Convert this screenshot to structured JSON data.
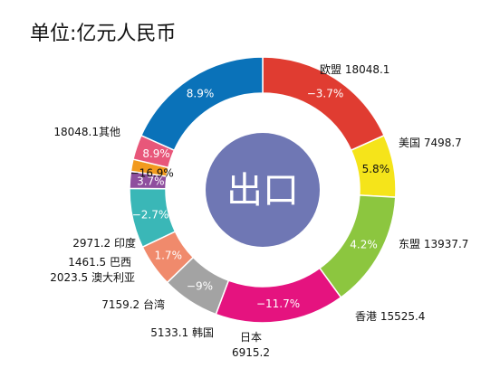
{
  "chart_data": {
    "type": "pie",
    "title": "单位:亿元人民币",
    "center_label": "出口",
    "slices": [
      {
        "name": "欧盟",
        "value": 18048.1,
        "label": "欧盟 18048.1",
        "growth": "−3.7%",
        "color": "#e03c31"
      },
      {
        "name": "美国",
        "value": 7498.7,
        "label": "美国 7498.7",
        "growth": "5.8%",
        "color": "#f5e41a"
      },
      {
        "name": "东盟",
        "value": 13937.7,
        "label": "东盟 13937.7",
        "growth": "4.2%",
        "color": "#8cc63f"
      },
      {
        "name": "香港",
        "value": 15525.4,
        "label": "香港 15525.4",
        "growth": "−11.7%",
        "color": "#e5137f"
      },
      {
        "name": "日本",
        "value": 6915.2,
        "label": "日本",
        "label2": "6915.2",
        "growth": "−9%",
        "color": "#a3a3a3"
      },
      {
        "name": "韩国",
        "value": 5133.1,
        "label": "5133.1 韩国",
        "growth": "1.7%",
        "color": "#f08a6c"
      },
      {
        "name": "台湾",
        "value": 7159.2,
        "label": "7159.2 台湾",
        "growth": "−2.7%",
        "color": "#3ab7b7"
      },
      {
        "name": "澳大利亚",
        "value": 2023.5,
        "label": "2023.5 澳大利亚",
        "growth": "3.7%",
        "color": "#8e4f9e"
      },
      {
        "name": "巴西",
        "value": 1461.5,
        "label": "1461.5 巴西",
        "growth": "−16.9%",
        "color": "#f29b1f"
      },
      {
        "name": "印度",
        "value": 2971.2,
        "label": "2971.2 印度",
        "growth": "8.9%",
        "color": "#e8577a"
      },
      {
        "name": "其他",
        "value": 18048.1,
        "label": "18048.1其他",
        "growth": "8.9%",
        "color": "#0a72b9"
      }
    ],
    "center_color": "#6f77b4",
    "start": "top, clockwise"
  }
}
